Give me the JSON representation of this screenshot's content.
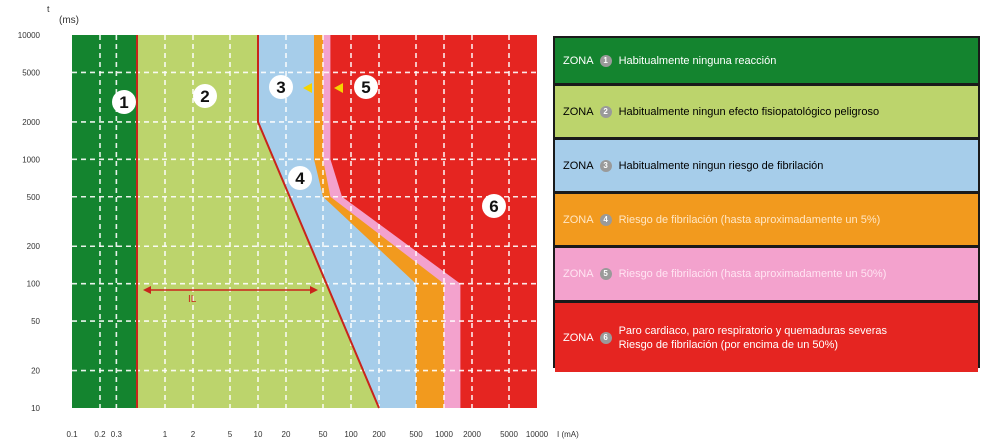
{
  "chart_data": {
    "type": "area",
    "y_axis_symbol": "t",
    "ylabel": "(ms)",
    "xlabel": "I (mA)",
    "x_scale": "log",
    "y_scale": "log",
    "xlim": [
      0.1,
      10000
    ],
    "ylim": [
      10,
      10000
    ],
    "x_ticks": [
      "0.1",
      "0.2",
      "0.3",
      "1",
      "2",
      "5",
      "10",
      "20",
      "50",
      "100",
      "200",
      "500",
      "1000",
      "2000",
      "5000",
      "10000"
    ],
    "y_ticks": [
      "10000",
      "5000",
      "2000",
      "1000",
      "500",
      "200",
      "100",
      "50",
      "20",
      "10"
    ],
    "grid": true,
    "curves": {
      "a": [
        [
          0.5,
          10
        ],
        [
          0.5,
          10000
        ]
      ],
      "b": [
        [
          200,
          10
        ],
        [
          10,
          2000
        ],
        [
          10,
          10000
        ]
      ],
      "c1": [
        [
          500,
          10
        ],
        [
          500,
          100
        ],
        [
          50,
          500
        ],
        [
          40,
          1000
        ],
        [
          40,
          10000
        ]
      ],
      "c2": [
        [
          1000,
          10
        ],
        [
          1000,
          100
        ],
        [
          60,
          500
        ],
        [
          50,
          1000
        ],
        [
          50,
          10000
        ]
      ],
      "c3": [
        [
          1500,
          10
        ],
        [
          1500,
          100
        ],
        [
          80,
          500
        ],
        [
          60,
          1000
        ],
        [
          60,
          10000
        ]
      ]
    },
    "zone_markers": [
      "1",
      "2",
      "3",
      "4",
      "5",
      "6"
    ],
    "annotation": "IL",
    "colors": {
      "zone1": "#14842f",
      "zone2": "#bcd46c",
      "zone3": "#a6cdea",
      "zone4": "#f29a1e",
      "zone5": "#f3a2cd",
      "zone6": "#e52521",
      "boundary": "#c9241c"
    }
  },
  "legend": {
    "zona_label": "ZONA",
    "rows": [
      {
        "num": "1",
        "text": "Habitualmente ninguna reacción"
      },
      {
        "num": "2",
        "text": "Habitualmente ningun efecto fisiopatológico peligroso"
      },
      {
        "num": "3",
        "text": "Habitualmente ningun riesgo de fibrilación"
      },
      {
        "num": "4",
        "text": "Riesgo de fibrilación (hasta aproximadamente un 5%)"
      },
      {
        "num": "5",
        "text": "Riesgo de fibrilación (hasta aproximadamente un 50%)"
      },
      {
        "num": "6",
        "text": "Paro cardiaco, paro respiratorio y quemaduras severas\nRiesgo de fibrilación (por encima de un 50%)"
      }
    ]
  }
}
